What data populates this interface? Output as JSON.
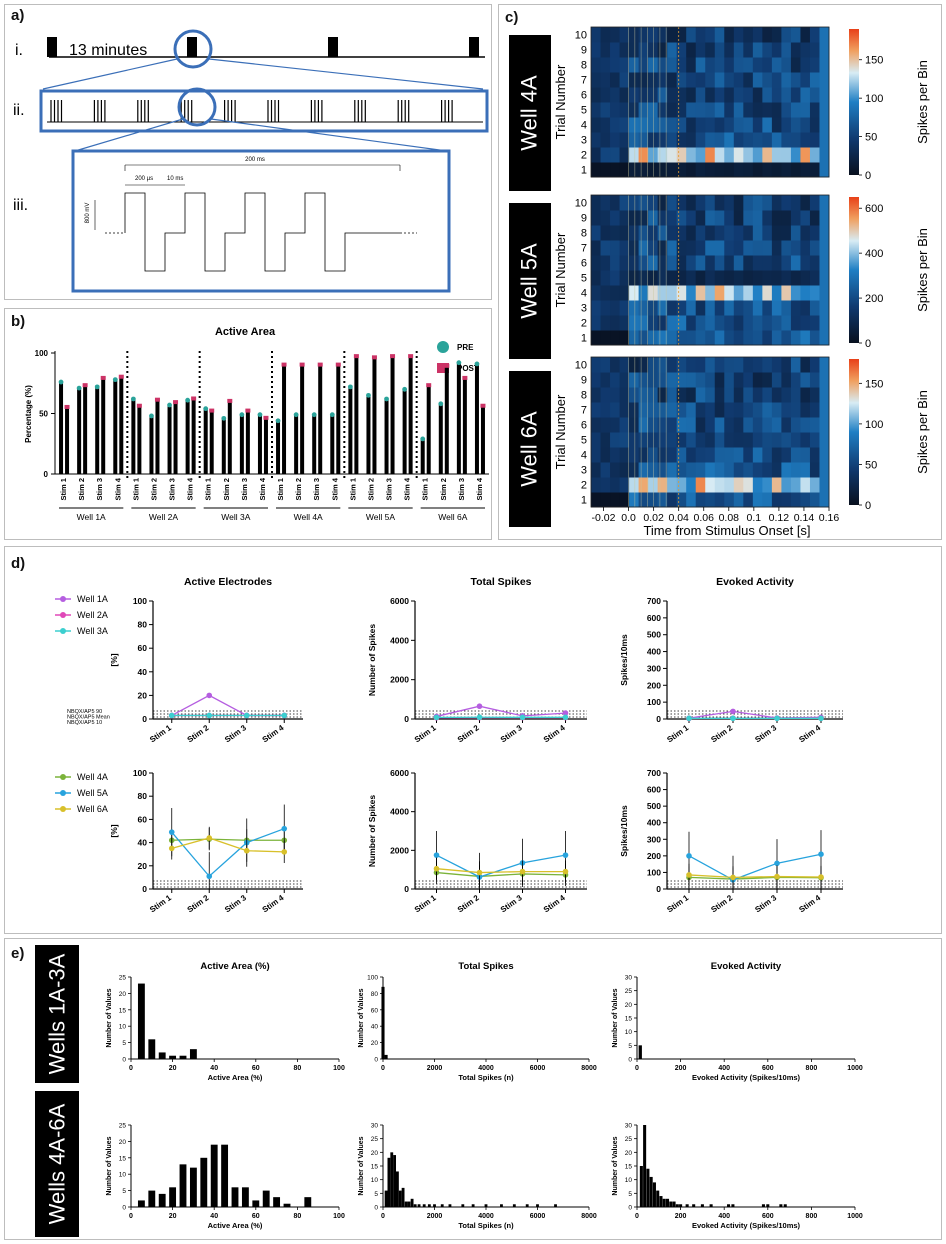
{
  "panels": {
    "a": {
      "label": "a)",
      "row_i": "i.",
      "row_ii": "ii.",
      "row_iii": "iii.",
      "interval_text": "13 minutes",
      "t_200ms": "200 ms",
      "t_200us": "200 µs",
      "t_10ms": "10 ms",
      "t_800mv": "800 mV"
    },
    "b": {
      "label": "b)",
      "title": "Active Area",
      "ylabel": "Percentage (%)",
      "legend_pre": "PRE",
      "legend_post": "POST",
      "yticks": [
        "0",
        "50",
        "100"
      ]
    },
    "c": {
      "label": "c)",
      "xlabel": "Time from Stimulus Onset [s]",
      "ylabel": "Trial Number",
      "cbar_label": "Spikes per Bin",
      "wells": [
        "Well 4A",
        "Well 5A",
        "Well 6A"
      ],
      "xticks": [
        "-0.02",
        "0.0",
        "0.02",
        "0.04",
        "0.06",
        "0.08",
        "0.1",
        "0.12",
        "0.14",
        "0.16"
      ],
      "yticks": [
        "1",
        "2",
        "3",
        "4",
        "5",
        "6",
        "7",
        "8",
        "9",
        "10"
      ],
      "cbar_ticks": [
        [
          "0",
          "50",
          "100",
          "150"
        ],
        [
          "0",
          "200",
          "400",
          "600"
        ],
        [
          "0",
          "50",
          "100",
          "150"
        ]
      ]
    },
    "d": {
      "label": "d)",
      "titles": [
        "Active Electrodes",
        "Total Spikes",
        "Evoked Activity"
      ],
      "ylabels": [
        "[%]",
        "Number of Spikes",
        "Spikes/10ms"
      ],
      "nbqx_labels": [
        "NBQX/AP5 90",
        "NBQX/AP5 Mean",
        "NBQX/AP5 10"
      ],
      "stims": [
        "Stim 1",
        "Stim 2",
        "Stim 3",
        "Stim 4"
      ],
      "yticks": [
        [
          "0",
          "20",
          "40",
          "60",
          "80",
          "100"
        ],
        [
          "0",
          "2000",
          "4000",
          "6000"
        ],
        [
          "0",
          "100",
          "200",
          "300",
          "400",
          "500",
          "600",
          "700"
        ]
      ]
    },
    "e": {
      "label": "e)",
      "groups": [
        "Wells 1A-3A",
        "Wells 4A-6A"
      ],
      "titles": [
        "Active Area (%)",
        "Total Spikes",
        "Evoked Activity"
      ],
      "xlabels": [
        "Active Area (%)",
        "Total Spikes (n)",
        "Evoked Activity (Spikes/10ms)"
      ],
      "ylabel": "Number of Values",
      "xticks": [
        [
          "0",
          "20",
          "40",
          "60",
          "80",
          "100"
        ],
        [
          "0",
          "2000",
          "4000",
          "6000",
          "8000"
        ],
        [
          "0",
          "200",
          "400",
          "600",
          "800",
          "1000"
        ]
      ]
    }
  },
  "colors": {
    "pre": "#2aa39a",
    "post": "#cc3366",
    "box": "#3b6fb8",
    "w1A": "#b55ee0",
    "w2A": "#e048b8",
    "w3A": "#3ccfcf",
    "w4A": "#7bb33a",
    "w5A": "#27a3dd",
    "w6A": "#d8c02a"
  },
  "chart_data": [
    {
      "id": "b",
      "type": "bar",
      "title": "Active Area",
      "ylabel": "Percentage (%)",
      "ylim": [
        0,
        100
      ],
      "groups": [
        "Well 1A",
        "Well 2A",
        "Well 3A",
        "Well 4A",
        "Well 5A",
        "Well 6A"
      ],
      "categories": [
        "Stim 1",
        "Stim 2",
        "Stim 3",
        "Stim 4"
      ],
      "series": [
        {
          "name": "PRE",
          "values": [
            [
              76,
              71,
              72,
              78
            ],
            [
              62,
              48,
              57,
              61
            ],
            [
              54,
              46,
              49,
              49
            ],
            [
              44,
              49,
              49,
              49
            ],
            [
              72,
              65,
              62,
              70
            ],
            [
              29,
              58,
              92,
              91
            ]
          ]
        },
        {
          "name": "POST",
          "values": [
            [
              55,
              73,
              79,
              80
            ],
            [
              56,
              61,
              59,
              62
            ],
            [
              52,
              60,
              52,
              46
            ],
            [
              90,
              90,
              90,
              90
            ],
            [
              97,
              96,
              97,
              97
            ],
            [
              73,
              89,
              79,
              56
            ]
          ]
        }
      ]
    },
    {
      "id": "c",
      "type": "heatmap",
      "xlabel": "Time from Stimulus Onset [s]",
      "ylabel": "Trial Number",
      "xlim": [
        -0.03,
        0.16
      ],
      "ylim": [
        0.5,
        10.5
      ],
      "wells": [
        {
          "name": "Well 4A",
          "vmax": 190,
          "peak_trials": [
            [
              2,
              170
            ],
            [
              1,
              20
            ]
          ]
        },
        {
          "name": "Well 5A",
          "vmax": 650,
          "peak_trials": [
            [
              4,
              550
            ],
            [
              5,
              120
            ]
          ]
        },
        {
          "name": "Well 6A",
          "vmax": 180,
          "peak_trials": [
            [
              2,
              160
            ],
            [
              5,
              60
            ]
          ]
        }
      ]
    },
    {
      "id": "d",
      "type": "line",
      "titles": [
        "Active Electrodes",
        "Total Spikes",
        "Evoked Activity"
      ],
      "categories": [
        "Stim 1",
        "Stim 2",
        "Stim 3",
        "Stim 4"
      ],
      "top": {
        "ylims": [
          [
            0,
            100
          ],
          [
            0,
            6000
          ],
          [
            0,
            700
          ]
        ],
        "series": [
          {
            "name": "Well 1A",
            "values": [
              [
                3,
                20,
                3,
                3
              ],
              [
                130,
                650,
                160,
                300
              ],
              [
                5,
                45,
                6,
                10
              ]
            ]
          },
          {
            "name": "Well 2A",
            "values": [
              [
                3,
                3,
                3,
                3
              ],
              [
                60,
                70,
                70,
                70
              ],
              [
                3,
                5,
                5,
                5
              ]
            ]
          },
          {
            "name": "Well 3A",
            "values": [
              [
                3,
                3,
                3,
                3
              ],
              [
                80,
                90,
                85,
                85
              ],
              [
                4,
                4,
                4,
                4
              ]
            ]
          }
        ]
      },
      "bottom": {
        "ylims": [
          [
            0,
            100
          ],
          [
            0,
            6000
          ],
          [
            0,
            700
          ]
        ],
        "series": [
          {
            "name": "Well 4A",
            "values": [
              [
                42,
                43,
                42,
                42
              ],
              [
                850,
                650,
                780,
                730
              ],
              [
                70,
                60,
                70,
                68
              ]
            ]
          },
          {
            "name": "Well 5A",
            "values": [
              [
                49,
                11,
                40,
                52
              ],
              [
                1750,
                620,
                1350,
                1750
              ],
              [
                200,
                55,
                155,
                210
              ]
            ]
          },
          {
            "name": "Well 6A",
            "values": [
              [
                35,
                44,
                33,
                32
              ],
              [
                1050,
                850,
                900,
                900
              ],
              [
                85,
                70,
                75,
                72
              ]
            ]
          }
        ]
      }
    },
    {
      "id": "e",
      "type": "histogram",
      "ylabel": "Number of Values",
      "rows": [
        {
          "group": "Wells 1A-3A",
          "plots": [
            {
              "title": "Active Area (%)",
              "xlim": [
                0,
                100
              ],
              "ylim": [
                0,
                25
              ],
              "bin_width": 3.3,
              "bins": [
                [
                  5,
                  23
                ],
                [
                  10,
                  6
                ],
                [
                  15,
                  2
                ],
                [
                  20,
                  1
                ],
                [
                  25,
                  1
                ],
                [
                  30,
                  3
                ]
              ]
            },
            {
              "title": "Total Spikes",
              "xlim": [
                0,
                8000
              ],
              "ylim": [
                0,
                100
              ],
              "bin_width": 120,
              "bins": [
                [
                  0,
                  88
                ],
                [
                  120,
                  5
                ]
              ]
            },
            {
              "title": "Evoked Activity",
              "xlim": [
                0,
                1000
              ],
              "ylim": [
                0,
                30
              ],
              "bin_width": 15,
              "bins": [
                [
                  15,
                  5
                ]
              ]
            }
          ]
        },
        {
          "group": "Wells 4A-6A",
          "plots": [
            {
              "title": "Active Area (%)",
              "xlim": [
                0,
                100
              ],
              "ylim": [
                0,
                25
              ],
              "bin_width": 3.3,
              "bins": [
                [
                  5,
                  2
                ],
                [
                  10,
                  5
                ],
                [
                  15,
                  4
                ],
                [
                  20,
                  6
                ],
                [
                  25,
                  13
                ],
                [
                  30,
                  12
                ],
                [
                  35,
                  15
                ],
                [
                  40,
                  19
                ],
                [
                  45,
                  19
                ],
                [
                  50,
                  6
                ],
                [
                  55,
                  6
                ],
                [
                  60,
                  2
                ],
                [
                  65,
                  5
                ],
                [
                  70,
                  3
                ],
                [
                  75,
                  1
                ],
                [
                  85,
                  3
                ]
              ]
            },
            {
              "title": "Total Spikes",
              "xlim": [
                0,
                8000
              ],
              "ylim": [
                0,
                30
              ],
              "bin_width": 110,
              "bins": [
                [
                  120,
                  6
                ],
                [
                  230,
                  18
                ],
                [
                  340,
                  20
                ],
                [
                  450,
                  19
                ],
                [
                  560,
                  13
                ],
                [
                  670,
                  6
                ],
                [
                  780,
                  7
                ],
                [
                  900,
                  2
                ],
                [
                  1010,
                  2
                ],
                [
                  1130,
                  3
                ],
                [
                  1250,
                  1
                ],
                [
                  1400,
                  1
                ],
                [
                  1600,
                  1
                ],
                [
                  1800,
                  1
                ],
                [
                  2000,
                  1
                ],
                [
                  2300,
                  1
                ],
                [
                  2600,
                  1
                ],
                [
                  3100,
                  1
                ],
                [
                  3500,
                  1
                ],
                [
                  4000,
                  1
                ],
                [
                  4600,
                  1
                ],
                [
                  5100,
                  1
                ],
                [
                  5600,
                  1
                ],
                [
                  6000,
                  1
                ],
                [
                  6700,
                  1
                ]
              ]
            },
            {
              "title": "Evoked Activity",
              "xlim": [
                0,
                1000
              ],
              "ylim": [
                0,
                30
              ],
              "bin_width": 14,
              "bins": [
                [
                  20,
                  15
                ],
                [
                  35,
                  30
                ],
                [
                  50,
                  14
                ],
                [
                  65,
                  11
                ],
                [
                  80,
                  9
                ],
                [
                  95,
                  6
                ],
                [
                  110,
                  4
                ],
                [
                  125,
                  3
                ],
                [
                  140,
                  3
                ],
                [
                  155,
                  2
                ],
                [
                  170,
                  2
                ],
                [
                  185,
                  1
                ],
                [
                  200,
                  1
                ],
                [
                  230,
                  1
                ],
                [
                  260,
                  1
                ],
                [
                  300,
                  1
                ],
                [
                  340,
                  1
                ],
                [
                  420,
                  1
                ],
                [
                  440,
                  1
                ],
                [
                  580,
                  1
                ],
                [
                  600,
                  1
                ],
                [
                  660,
                  1
                ],
                [
                  680,
                  1
                ]
              ]
            }
          ]
        }
      ]
    }
  ]
}
